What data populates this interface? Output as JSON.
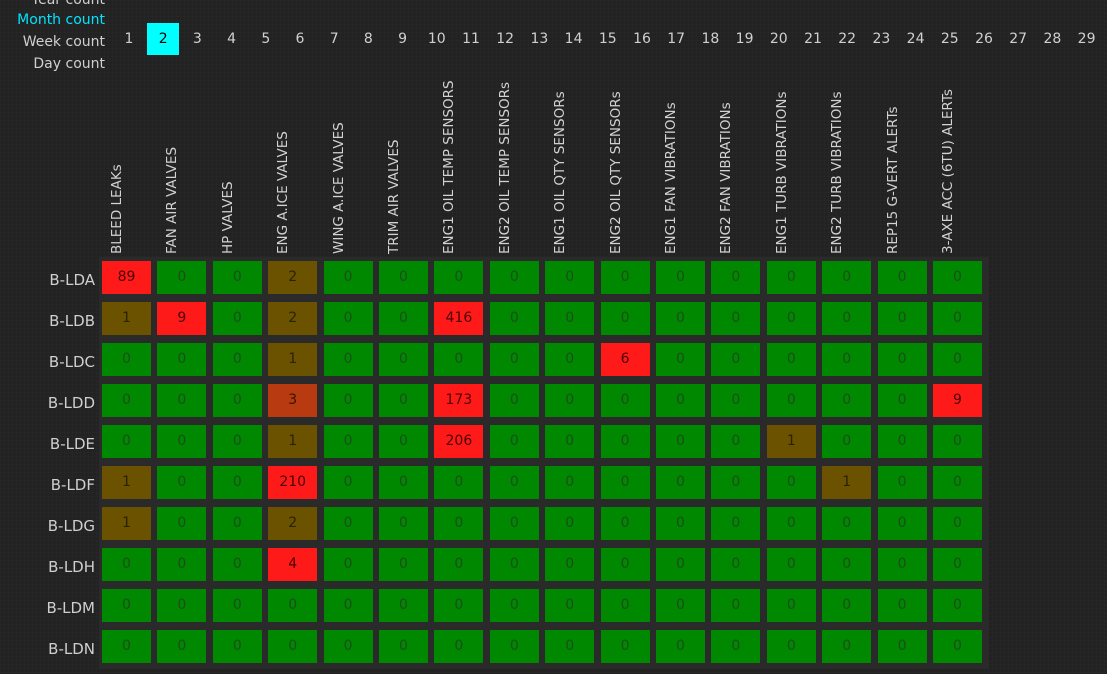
{
  "periods": {
    "year": "Year count",
    "month": "Month count",
    "week": "Week count",
    "day": "Day count"
  },
  "numbers": [
    "1",
    "2",
    "3",
    "4",
    "5",
    "6",
    "7",
    "8",
    "9",
    "10",
    "11",
    "12",
    "13",
    "14",
    "15",
    "16",
    "17",
    "18",
    "19",
    "20",
    "21",
    "22",
    "23",
    "24",
    "25",
    "26",
    "27",
    "28",
    "29"
  ],
  "selected_number": "2",
  "columns": [
    "BLEED LEAKs",
    "FAN AIR VALVES",
    "HP VALVES",
    "ENG A.ICE VALVES",
    "WING A.ICE VALVES",
    "TRIM AIR VALVES",
    "ENG1 OIL TEMP SENSORS",
    "ENG2 OIL TEMP SENSORs",
    "ENG1 OIL QTY SENSORs",
    "ENG2 OIL QTY SENSORs",
    "ENG1 FAN VIBRATIONs",
    "ENG2 FAN VIBRATIONs",
    "ENG1 TURB VIBRATIONs",
    "ENG2 TURB VIBRATIONs",
    "REP15 G-VERT ALERTs",
    "3-AXE ACC (6TU) ALERTs"
  ],
  "rows": [
    {
      "label": "B-LDA",
      "values": [
        "89",
        "0",
        "0",
        "2",
        "0",
        "0",
        "0",
        "0",
        "0",
        "0",
        "0",
        "0",
        "0",
        "0",
        "0",
        "0"
      ]
    },
    {
      "label": "B-LDB",
      "values": [
        "1",
        "9",
        "0",
        "2",
        "0",
        "0",
        "416",
        "0",
        "0",
        "0",
        "0",
        "0",
        "0",
        "0",
        "0",
        "0"
      ]
    },
    {
      "label": "B-LDC",
      "values": [
        "0",
        "0",
        "0",
        "1",
        "0",
        "0",
        "0",
        "0",
        "0",
        "6",
        "0",
        "0",
        "0",
        "0",
        "0",
        "0"
      ]
    },
    {
      "label": "B-LDD",
      "values": [
        "0",
        "0",
        "0",
        "3",
        "0",
        "0",
        "173",
        "0",
        "0",
        "0",
        "0",
        "0",
        "0",
        "0",
        "0",
        "9"
      ]
    },
    {
      "label": "B-LDE",
      "values": [
        "0",
        "0",
        "0",
        "1",
        "0",
        "0",
        "206",
        "0",
        "0",
        "0",
        "0",
        "0",
        "1",
        "0",
        "0",
        "0"
      ]
    },
    {
      "label": "B-LDF",
      "values": [
        "1",
        "0",
        "0",
        "210",
        "0",
        "0",
        "0",
        "0",
        "0",
        "0",
        "0",
        "0",
        "0",
        "1",
        "0",
        "0"
      ]
    },
    {
      "label": "B-LDG",
      "values": [
        "1",
        "0",
        "0",
        "2",
        "0",
        "0",
        "0",
        "0",
        "0",
        "0",
        "0",
        "0",
        "0",
        "0",
        "0",
        "0"
      ]
    },
    {
      "label": "B-LDH",
      "values": [
        "0",
        "0",
        "0",
        "4",
        "0",
        "0",
        "0",
        "0",
        "0",
        "0",
        "0",
        "0",
        "0",
        "0",
        "0",
        "0"
      ]
    },
    {
      "label": "B-LDM",
      "values": [
        "0",
        "0",
        "0",
        "0",
        "0",
        "0",
        "0",
        "0",
        "0",
        "0",
        "0",
        "0",
        "0",
        "0",
        "0",
        "0"
      ]
    },
    {
      "label": "B-LDN",
      "values": [
        "0",
        "0",
        "0",
        "0",
        "0",
        "0",
        "0",
        "0",
        "0",
        "0",
        "0",
        "0",
        "0",
        "0",
        "0",
        "0"
      ]
    }
  ],
  "colors": {
    "active": "#00ffff",
    "ok_cell": "#008800",
    "alert_cell": "#ff1a1a",
    "warn_cell": "#6b5200",
    "mid_cell": "#b83a10"
  }
}
